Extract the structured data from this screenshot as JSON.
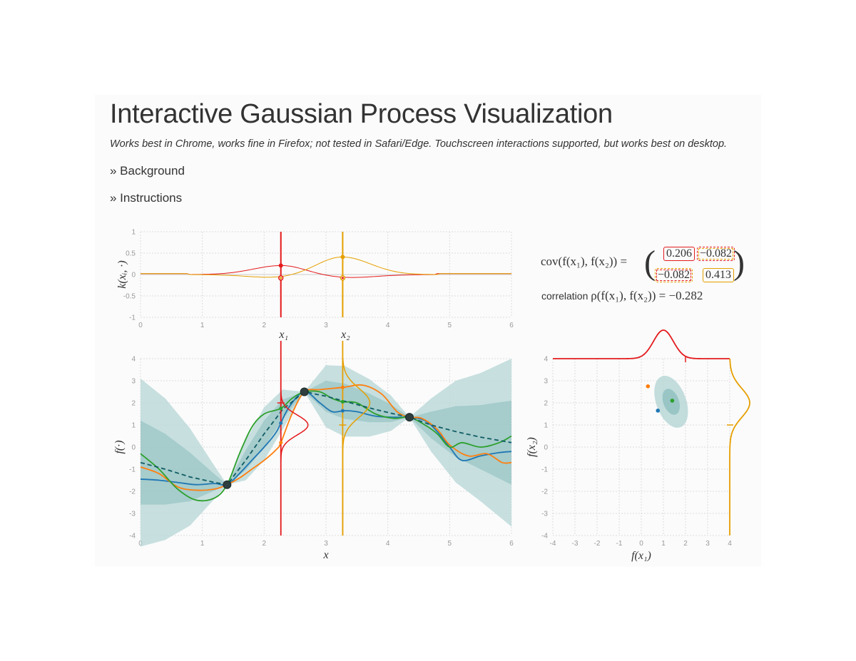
{
  "page": {
    "title": "Interactive Gaussian Process Visualization",
    "subtitle": "Works best in Chrome, works fine in Firefox; not tested in Safari/Edge. Touchscreen interactions supported, but works best on desktop.",
    "toggles": {
      "background": "» Background",
      "instructions": "» Instructions"
    }
  },
  "covariance": {
    "label": "cov(f(x₁), f(x₂)) =",
    "matrix": [
      [
        "0.206",
        "−0.082"
      ],
      [
        "−0.082",
        "0.413"
      ]
    ],
    "correlation_text": "correlation",
    "correlation_math": "ρ(f(x₁), f(x₂)) = −0.282"
  },
  "colors": {
    "x1": "#e41a1c",
    "x2": "#e69f00",
    "band": "#b5d6d6",
    "band_dark": "#8fbfbf",
    "mean": "#0f5c64",
    "sample_blue": "#1f77b4",
    "sample_orange": "#ff7f0e",
    "sample_green": "#2ca02c",
    "point": "#2f3f3f"
  },
  "chart_data": [
    {
      "id": "kernel",
      "type": "line",
      "ylabel": "k(xᵢ, ·)",
      "xlim": [
        0,
        6
      ],
      "ylim": [
        -1,
        1
      ],
      "xticks": [
        "0",
        "1",
        "2",
        "3",
        "4",
        "5",
        "6"
      ],
      "yticks": [
        "-1",
        "-0.5",
        "0",
        "0.5",
        "1"
      ],
      "x_markers": [
        {
          "name": "x₁",
          "x": 2.27,
          "color": "#e41a1c",
          "k_self": 0.21,
          "k_other": -0.08
        },
        {
          "name": "x₂",
          "x": 3.27,
          "color": "#e69f00",
          "k_self": 0.41,
          "k_other": -0.08
        }
      ]
    },
    {
      "id": "gp",
      "type": "line",
      "xlabel": "x",
      "ylabel": "f(·)",
      "xlim": [
        0,
        6
      ],
      "ylim": [
        -4,
        4
      ],
      "xticks": [
        "0",
        "1",
        "2",
        "3",
        "4",
        "5",
        "6"
      ],
      "yticks": [
        "-4",
        "-3",
        "-2",
        "-1",
        "0",
        "1",
        "2",
        "3",
        "4"
      ],
      "observations": [
        {
          "x": 1.4,
          "y": -1.7
        },
        {
          "x": 2.65,
          "y": 2.5
        },
        {
          "x": 4.35,
          "y": 1.35
        }
      ],
      "mean": [
        [
          0,
          -0.7
        ],
        [
          0.4,
          -1.0
        ],
        [
          0.8,
          -1.35
        ],
        [
          1.2,
          -1.6
        ],
        [
          1.4,
          -1.7
        ],
        [
          1.7,
          -0.6
        ],
        [
          2.0,
          0.6
        ],
        [
          2.3,
          1.7
        ],
        [
          2.65,
          2.5
        ],
        [
          3.0,
          2.3
        ],
        [
          3.4,
          2.0
        ],
        [
          3.8,
          1.7
        ],
        [
          4.1,
          1.5
        ],
        [
          4.35,
          1.35
        ],
        [
          4.7,
          1.0
        ],
        [
          5.1,
          0.7
        ],
        [
          5.5,
          0.45
        ],
        [
          6.0,
          0.2
        ]
      ],
      "band_sd": [
        [
          0,
          1.9
        ],
        [
          0.4,
          1.6
        ],
        [
          0.8,
          1.1
        ],
        [
          1.1,
          0.55
        ],
        [
          1.4,
          0
        ],
        [
          1.7,
          0.45
        ],
        [
          2.0,
          0.6
        ],
        [
          2.3,
          0.45
        ],
        [
          2.65,
          0
        ],
        [
          3.0,
          0.7
        ],
        [
          3.3,
          0.8
        ],
        [
          3.7,
          0.65
        ],
        [
          4.05,
          0.4
        ],
        [
          4.35,
          0
        ],
        [
          4.7,
          0.6
        ],
        [
          5.1,
          1.15
        ],
        [
          5.5,
          1.45
        ],
        [
          6.0,
          1.9
        ]
      ],
      "series": [
        {
          "color": "sample_blue",
          "values": [
            [
              0,
              -1.45
            ],
            [
              0.3,
              -1.5
            ],
            [
              0.6,
              -1.6
            ],
            [
              0.9,
              -1.7
            ],
            [
              1.2,
              -1.65
            ],
            [
              1.4,
              -1.7
            ],
            [
              1.6,
              -1.2
            ],
            [
              1.8,
              -0.6
            ],
            [
              2.0,
              0.0
            ],
            [
              2.2,
              0.7
            ],
            [
              2.4,
              1.8
            ],
            [
              2.65,
              2.5
            ],
            [
              2.9,
              2.0
            ],
            [
              3.1,
              1.6
            ],
            [
              3.3,
              1.65
            ],
            [
              3.5,
              1.6
            ],
            [
              3.8,
              1.4
            ],
            [
              4.1,
              1.35
            ],
            [
              4.35,
              1.35
            ],
            [
              4.6,
              1.2
            ],
            [
              4.8,
              0.7
            ],
            [
              5.0,
              0.0
            ],
            [
              5.2,
              -0.6
            ],
            [
              5.5,
              -0.4
            ],
            [
              5.8,
              -0.25
            ],
            [
              6.0,
              -0.2
            ]
          ]
        },
        {
          "color": "sample_orange",
          "values": [
            [
              0,
              -0.9
            ],
            [
              0.3,
              -1.2
            ],
            [
              0.6,
              -1.8
            ],
            [
              0.9,
              -1.95
            ],
            [
              1.2,
              -1.9
            ],
            [
              1.4,
              -1.7
            ],
            [
              1.6,
              -1.4
            ],
            [
              1.8,
              -1.0
            ],
            [
              2.0,
              -0.6
            ],
            [
              2.2,
              -0.1
            ],
            [
              2.27,
              0.2
            ],
            [
              2.45,
              1.5
            ],
            [
              2.65,
              2.5
            ],
            [
              2.9,
              2.6
            ],
            [
              3.27,
              2.7
            ],
            [
              3.6,
              2.8
            ],
            [
              3.9,
              2.4
            ],
            [
              4.15,
              1.6
            ],
            [
              4.35,
              1.35
            ],
            [
              4.55,
              1.3
            ],
            [
              4.8,
              0.8
            ],
            [
              5.0,
              0.1
            ],
            [
              5.3,
              -0.4
            ],
            [
              5.6,
              -0.3
            ],
            [
              5.85,
              -0.7
            ],
            [
              6.0,
              -0.7
            ]
          ]
        },
        {
          "color": "sample_green",
          "values": [
            [
              0,
              -0.3
            ],
            [
              0.3,
              -1.0
            ],
            [
              0.6,
              -1.9
            ],
            [
              0.9,
              -2.4
            ],
            [
              1.2,
              -2.3
            ],
            [
              1.4,
              -1.7
            ],
            [
              1.6,
              -0.3
            ],
            [
              1.8,
              0.9
            ],
            [
              2.0,
              1.5
            ],
            [
              2.27,
              1.75
            ],
            [
              2.45,
              2.2
            ],
            [
              2.65,
              2.5
            ],
            [
              2.9,
              2.5
            ],
            [
              3.1,
              2.2
            ],
            [
              3.27,
              2.05
            ],
            [
              3.5,
              2.0
            ],
            [
              3.8,
              1.5
            ],
            [
              4.1,
              1.3
            ],
            [
              4.35,
              1.35
            ],
            [
              4.6,
              1.0
            ],
            [
              4.8,
              0.6
            ],
            [
              5.0,
              0.0
            ],
            [
              5.2,
              0.2
            ],
            [
              5.5,
              0.0
            ],
            [
              5.8,
              0.2
            ],
            [
              6.0,
              0.5
            ]
          ]
        }
      ],
      "marginal_x1": {
        "mean": 1.0,
        "sd": 0.45,
        "value": 2.0
      },
      "marginal_x2": {
        "mean": 2.0,
        "sd": 0.65,
        "value": 1.0
      }
    },
    {
      "id": "joint",
      "type": "scatter",
      "xlabel": "f(x₁)",
      "ylabel": "f(x₂)",
      "xlim": [
        -4,
        4
      ],
      "ylim": [
        -4,
        4
      ],
      "xticks": [
        "-4",
        "-3",
        "-2",
        "-1",
        "0",
        "1",
        "2",
        "3",
        "4"
      ],
      "yticks": [
        "-4",
        "-3",
        "-2",
        "-1",
        "0",
        "1",
        "2",
        "3",
        "4"
      ],
      "ellipse": {
        "cx": 1.35,
        "cy": 2.05
      },
      "points": [
        {
          "x": 0.3,
          "y": 2.75,
          "color": "sample_orange"
        },
        {
          "x": 0.75,
          "y": 1.65,
          "color": "sample_blue"
        },
        {
          "x": 1.4,
          "y": 2.1,
          "color": "sample_green"
        }
      ],
      "marker_x": 2.0,
      "marker_y": 1.0
    }
  ]
}
